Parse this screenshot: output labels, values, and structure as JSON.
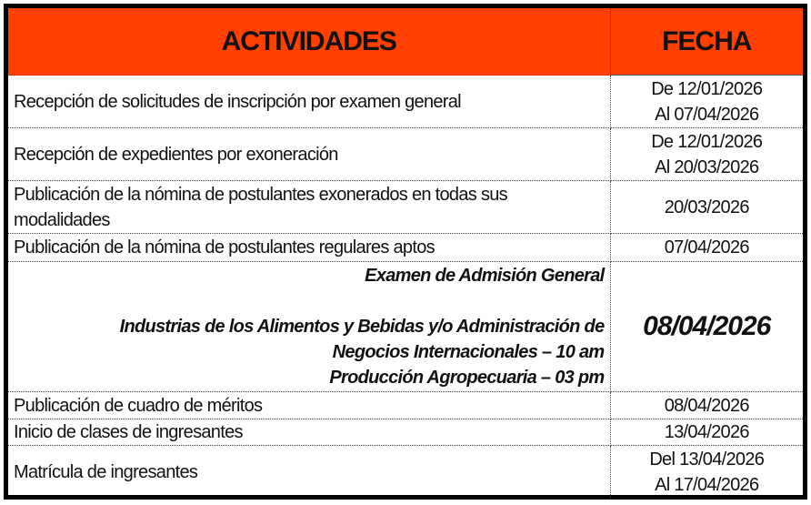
{
  "header": {
    "activities": "ACTIVIDADES",
    "date": "FECHA",
    "header_color": "#FF4000"
  },
  "rows": [
    {
      "activity": "Recepción de solicitudes de inscripción por examen general",
      "date_line1": "De 12/01/2026",
      "date_line2": "Al 07/04/2026"
    },
    {
      "activity": "Recepción de expedientes por exoneración",
      "date_line1": "De 12/01/2026",
      "date_line2": "Al 20/03/2026"
    },
    {
      "activity": "Publicación de la nómina de postulantes exonerados en todas sus modalidades",
      "date_line1": "20/03/2026"
    },
    {
      "activity": "Publicación de la nómina de postulantes regulares aptos",
      "date_line1": "07/04/2026"
    },
    {
      "activity_title": "Examen de Admisión General",
      "activity_line1": "Industrias de los Alimentos y Bebidas y/o Administración de Negocios Internacionales – 10 am",
      "activity_line2": "Producción Agropecuaria – 03 pm",
      "date_line1": "08/04/2026"
    },
    {
      "activity": "Publicación de cuadro de méritos",
      "date_line1": "08/04/2026"
    },
    {
      "activity": "Inicio de clases de ingresantes",
      "date_line1": "13/04/2026"
    },
    {
      "activity": "Matrícula de ingresantes",
      "date_line1": "Del 13/04/2026",
      "date_line2": "Al 17/04/2026"
    }
  ]
}
